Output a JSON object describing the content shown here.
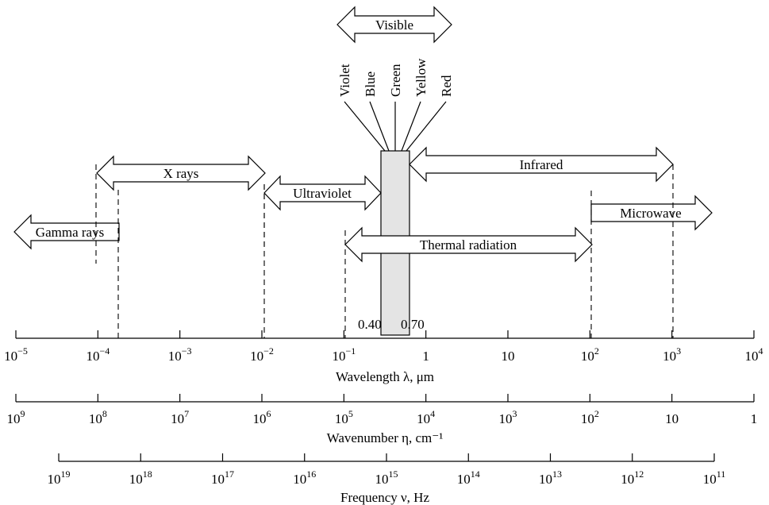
{
  "bands": {
    "visible": "Visible",
    "x_rays": "X rays",
    "ultraviolet": "Ultraviolet",
    "infrared": "Infrared",
    "gamma_rays": "Gamma rays",
    "microwave": "Microwave",
    "thermal_radiation": "Thermal radiation"
  },
  "visible_colors": [
    "Violet",
    "Blue",
    "Green",
    "Yellow",
    "Red"
  ],
  "visible_band_edges": [
    "0.40",
    "0.70"
  ],
  "axes": {
    "wavelength": {
      "title": "Wavelength λ, μm",
      "ticks": [
        {
          "base": "10",
          "exp": "−5"
        },
        {
          "base": "10",
          "exp": "−4"
        },
        {
          "base": "10",
          "exp": "−3"
        },
        {
          "base": "10",
          "exp": "−2"
        },
        {
          "base": "10",
          "exp": "−1"
        },
        {
          "base": "1",
          "exp": ""
        },
        {
          "base": "10",
          "exp": ""
        },
        {
          "base": "10",
          "exp": "2"
        },
        {
          "base": "10",
          "exp": "3"
        },
        {
          "base": "10",
          "exp": "4"
        }
      ]
    },
    "wavenumber": {
      "title": "Wavenumber η, cm⁻¹",
      "ticks": [
        {
          "base": "10",
          "exp": "9"
        },
        {
          "base": "10",
          "exp": "8"
        },
        {
          "base": "10",
          "exp": "7"
        },
        {
          "base": "10",
          "exp": "6"
        },
        {
          "base": "10",
          "exp": "5"
        },
        {
          "base": "10",
          "exp": "4"
        },
        {
          "base": "10",
          "exp": "3"
        },
        {
          "base": "10",
          "exp": "2"
        },
        {
          "base": "10",
          "exp": ""
        },
        {
          "base": "1",
          "exp": ""
        }
      ]
    },
    "frequency": {
      "title": "Frequency ν, Hz",
      "ticks": [
        {
          "base": "10",
          "exp": "19"
        },
        {
          "base": "10",
          "exp": "18"
        },
        {
          "base": "10",
          "exp": "17"
        },
        {
          "base": "10",
          "exp": "16"
        },
        {
          "base": "10",
          "exp": "15"
        },
        {
          "base": "10",
          "exp": "14"
        },
        {
          "base": "10",
          "exp": "13"
        },
        {
          "base": "10",
          "exp": "12"
        },
        {
          "base": "10",
          "exp": "11"
        }
      ]
    }
  },
  "colors": {
    "visible_band_fill": "#e4e4e4",
    "line": "#000000",
    "arrow_fill": "#ffffff"
  }
}
